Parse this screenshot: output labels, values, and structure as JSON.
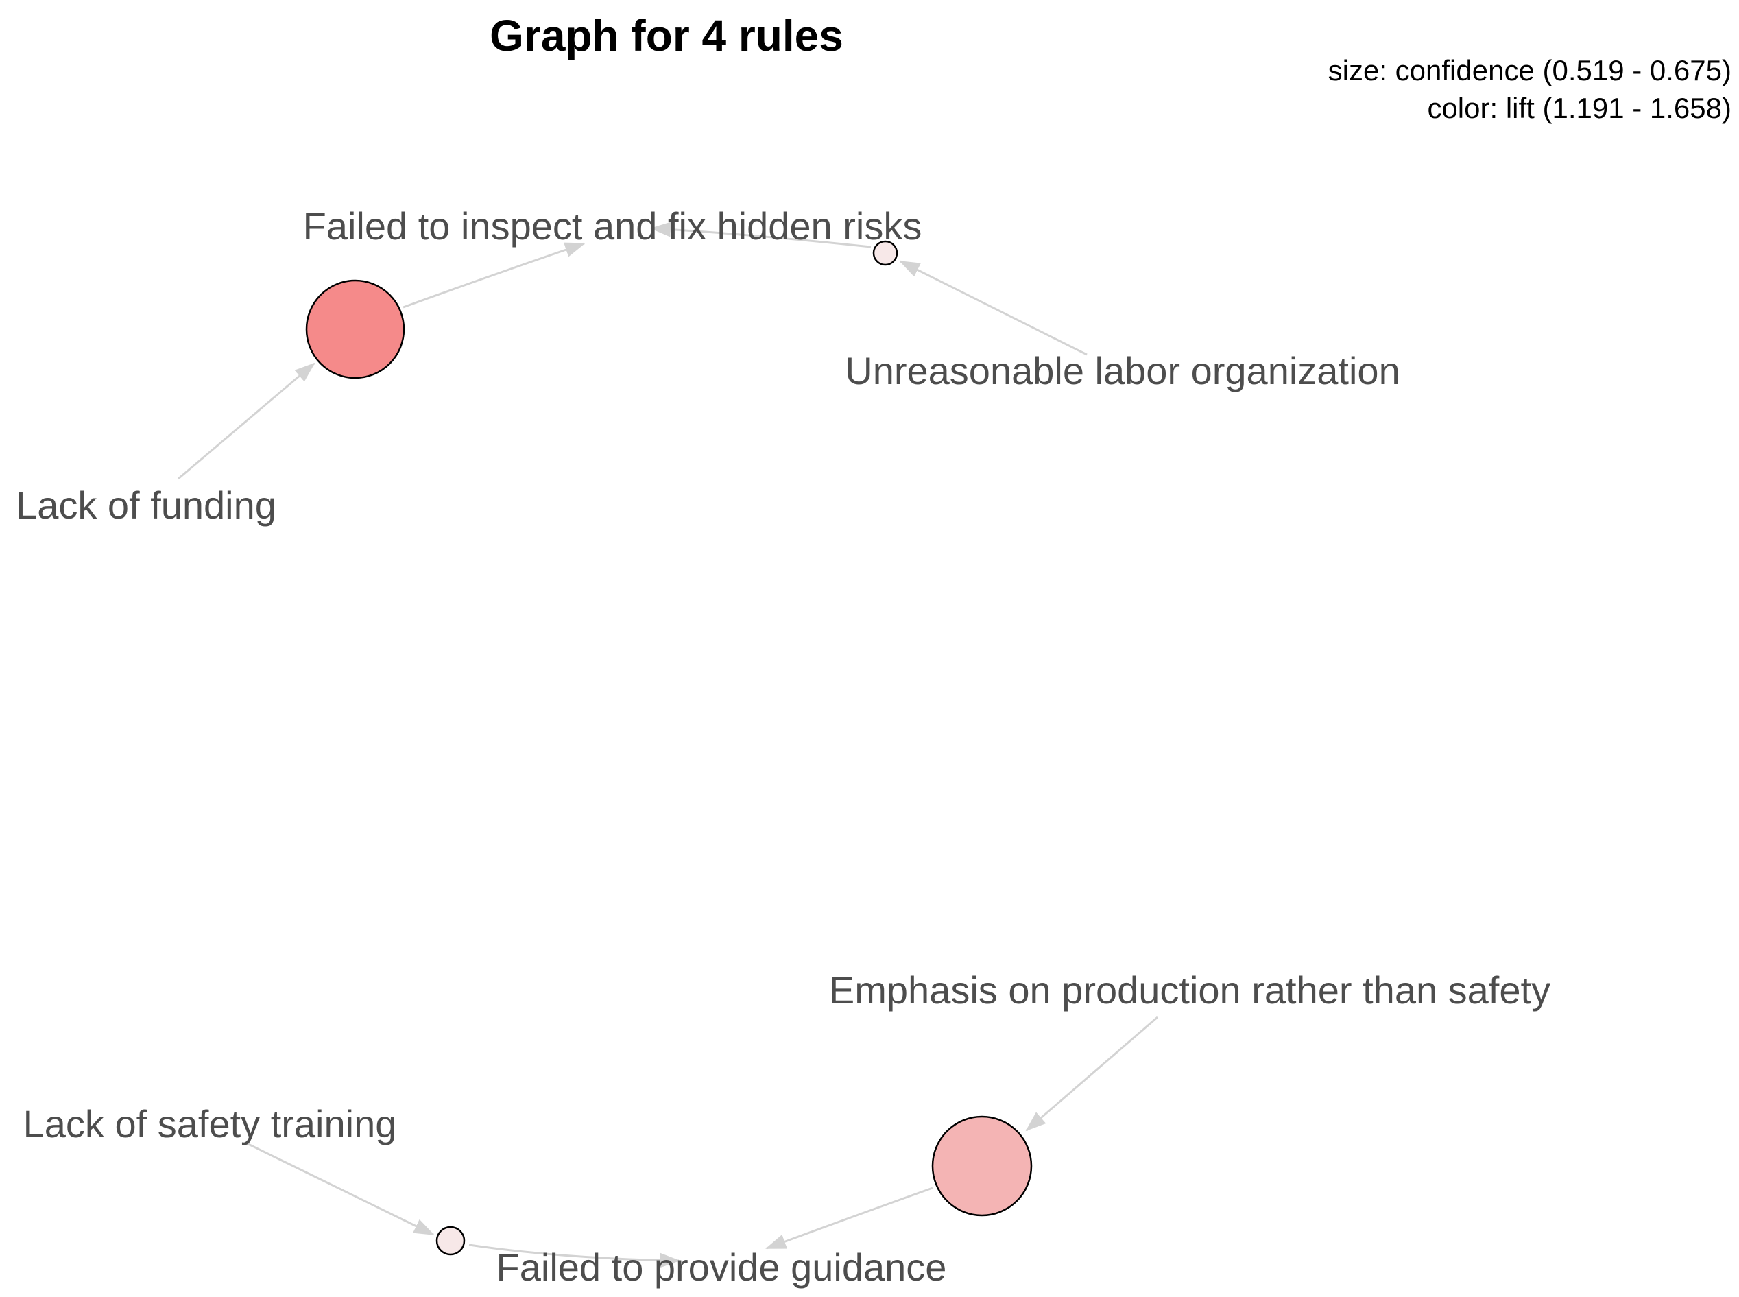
{
  "title": "Graph for 4 rules",
  "legend": {
    "size_line": "size: confidence (0.519 - 0.675)",
    "color_line": "color: lift (1.191 - 1.658)"
  },
  "items": {
    "inspect": "Failed to inspect and fix hidden risks",
    "labor": "Unreasonable labor organization",
    "funding": "Lack of funding",
    "production": "Emphasis on production rather than safety",
    "training": "Lack of safety training",
    "guidance": "Failed to provide guidance"
  },
  "colors": {
    "rule_high_lift": "#f58a8a",
    "rule_mid_lift": "#f4b4b4",
    "rule_low_lift": "#f7e8e8",
    "edge": "#d3d3d3"
  },
  "rules": [
    {
      "lhs": "Lack of funding",
      "rhs": "Failed to inspect and fix hidden risks",
      "confidence": "high",
      "lift": "high"
    },
    {
      "lhs": "Unreasonable labor organization",
      "rhs": "Failed to inspect and fix hidden risks",
      "confidence": "low",
      "lift": "low"
    },
    {
      "lhs": "Emphasis on production rather than safety",
      "rhs": "Failed to provide guidance",
      "confidence": "high",
      "lift": "mid"
    },
    {
      "lhs": "Lack of safety training",
      "rhs": "Failed to provide guidance",
      "confidence": "low",
      "lift": "low"
    }
  ]
}
